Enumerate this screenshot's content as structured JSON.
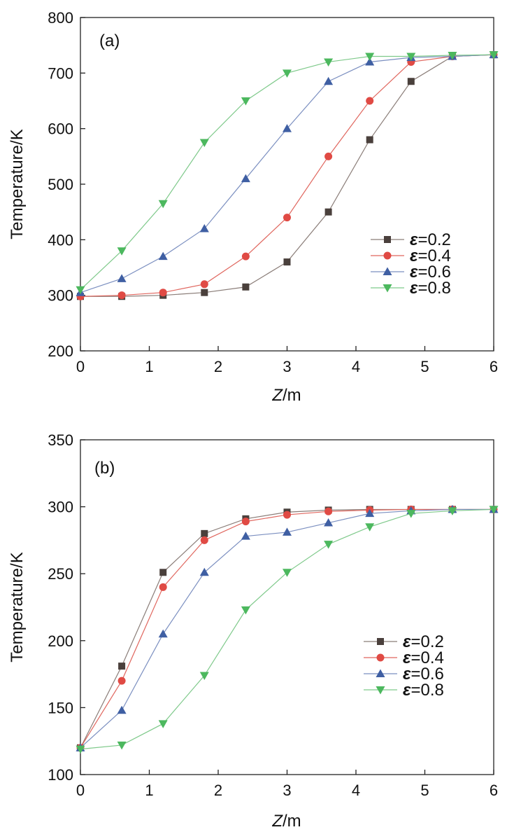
{
  "chart_data": [
    {
      "type": "line",
      "panel_label": "(a)",
      "xlabel": {
        "italic": "Z",
        "rest": "/m"
      },
      "ylabel": "Temperature/K",
      "xlim": [
        0,
        6
      ],
      "ylim": [
        200,
        800
      ],
      "xticks": [
        0,
        1,
        2,
        3,
        4,
        5,
        6
      ],
      "yticks": [
        200,
        300,
        400,
        500,
        600,
        700,
        800
      ],
      "grid": false,
      "legend_position": "right-middle",
      "x": [
        0,
        0.6,
        1.2,
        1.8,
        2.4,
        3.0,
        3.6,
        4.2,
        4.8,
        5.4,
        6.0
      ],
      "series": [
        {
          "name": "ε=0.2",
          "name_symbol": "ε",
          "name_rest": "=0.2",
          "marker": "square",
          "color": "#8a7d78",
          "marker_color": "#4a403c",
          "values": [
            298,
            298,
            300,
            305,
            315,
            360,
            450,
            580,
            685,
            730,
            733
          ]
        },
        {
          "name": "ε=0.4",
          "name_symbol": "ε",
          "name_rest": "=0.4",
          "marker": "circle",
          "color": "#e0665e",
          "marker_color": "#e04a44",
          "values": [
            298,
            300,
            305,
            320,
            370,
            440,
            550,
            650,
            720,
            730,
            733
          ]
        },
        {
          "name": "ε=0.6",
          "name_symbol": "ε",
          "name_rest": "=0.6",
          "marker": "triangle-up",
          "color": "#7b8fc0",
          "marker_color": "#3f5fa3",
          "values": [
            305,
            330,
            370,
            420,
            510,
            600,
            685,
            720,
            728,
            730,
            733
          ]
        },
        {
          "name": "ε=0.8",
          "name_symbol": "ε",
          "name_rest": "=0.8",
          "marker": "triangle-down",
          "color": "#7ec98a",
          "marker_color": "#4cb85e",
          "values": [
            310,
            380,
            465,
            575,
            650,
            700,
            720,
            730,
            730,
            732,
            733
          ]
        }
      ]
    },
    {
      "type": "line",
      "panel_label": "(b)",
      "xlabel": {
        "italic": "Z",
        "rest": "/m"
      },
      "ylabel": "Temperature/K",
      "xlim": [
        0,
        6
      ],
      "ylim": [
        100,
        350
      ],
      "xticks": [
        0,
        1,
        2,
        3,
        4,
        5,
        6
      ],
      "yticks": [
        100,
        150,
        200,
        250,
        300,
        350
      ],
      "grid": false,
      "legend_position": "right-middle",
      "x": [
        0,
        0.6,
        1.2,
        1.8,
        2.4,
        3.0,
        3.6,
        4.2,
        4.8,
        5.4,
        6.0
      ],
      "series": [
        {
          "name": "ε=0.2",
          "name_symbol": "ε",
          "name_rest": "=0.2",
          "marker": "square",
          "color": "#8a7d78",
          "marker_color": "#4a403c",
          "values": [
            120,
            181,
            251,
            280,
            291,
            296,
            297.5,
            298,
            298,
            298,
            298
          ]
        },
        {
          "name": "ε=0.4",
          "name_symbol": "ε",
          "name_rest": "=0.4",
          "marker": "circle",
          "color": "#e0665e",
          "marker_color": "#e04a44",
          "values": [
            120,
            170,
            240,
            275,
            289,
            294,
            296.5,
            297.5,
            298,
            298,
            298
          ]
        },
        {
          "name": "ε=0.6",
          "name_symbol": "ε",
          "name_rest": "=0.6",
          "marker": "triangle-up",
          "color": "#7b8fc0",
          "marker_color": "#3f5fa3",
          "values": [
            120,
            148,
            205,
            251,
            278,
            281,
            288,
            295,
            297,
            298,
            298
          ]
        },
        {
          "name": "ε=0.8",
          "name_symbol": "ε",
          "name_rest": "=0.8",
          "marker": "triangle-down",
          "color": "#7ec98a",
          "marker_color": "#4cb85e",
          "values": [
            119,
            122,
            138,
            174,
            223,
            251,
            272,
            285,
            295,
            297,
            298
          ]
        }
      ]
    }
  ]
}
